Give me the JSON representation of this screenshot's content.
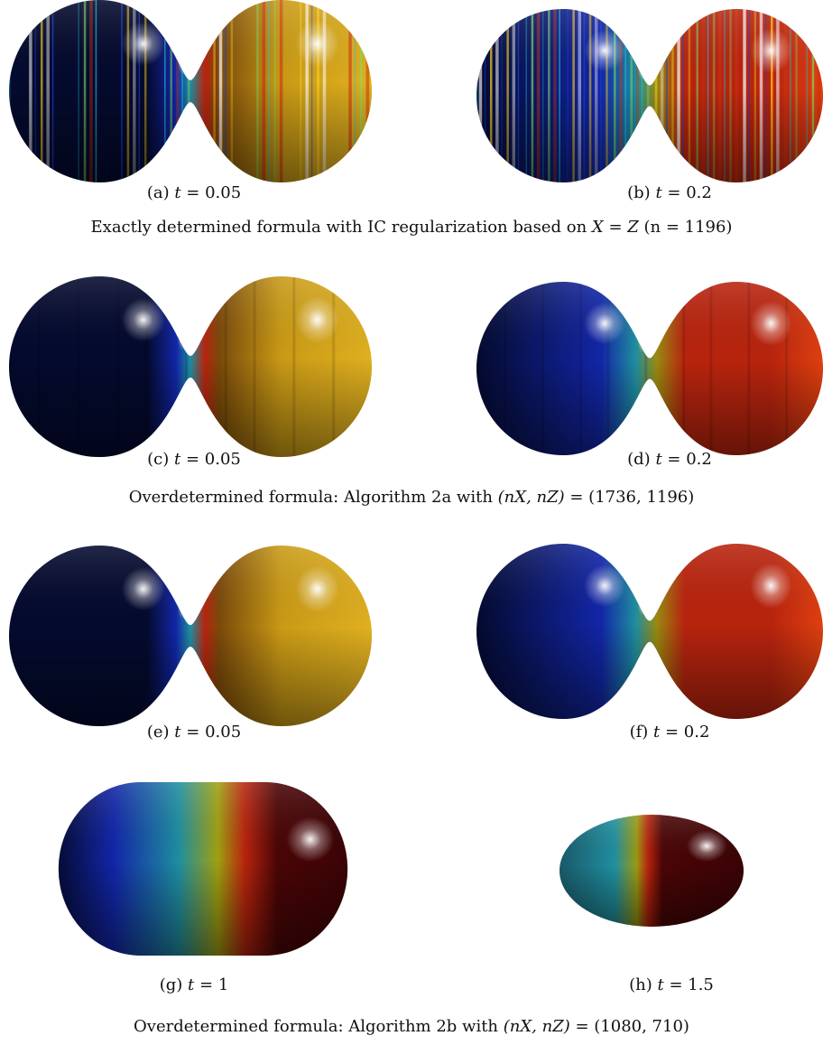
{
  "panels": [
    {
      "label": "(a)",
      "var": "t",
      "value": "0.05",
      "shape": "dumbbell",
      "style": "striped-gold"
    },
    {
      "label": "(b)",
      "var": "t",
      "value": "0.2",
      "shape": "dumbbell",
      "style": "striped-red"
    },
    {
      "label": "(c)",
      "var": "t",
      "value": "0.05",
      "shape": "dumbbell",
      "style": "smooth-gold"
    },
    {
      "label": "(d)",
      "var": "t",
      "value": "0.2",
      "shape": "dumbbell",
      "style": "smooth-red"
    },
    {
      "label": "(e)",
      "var": "t",
      "value": "0.05",
      "shape": "dumbbell",
      "style": "clean-gold"
    },
    {
      "label": "(f)",
      "var": "t",
      "value": "0.2",
      "shape": "dumbbell",
      "style": "clean-red"
    },
    {
      "label": "(g)",
      "var": "t",
      "value": "1",
      "shape": "capsule",
      "style": "capsule"
    },
    {
      "label": "(h)",
      "var": "t",
      "value": "1.5",
      "shape": "ellipse",
      "style": "ellipse"
    }
  ],
  "row_captions": [
    {
      "before": "Exactly determined formula with IC regularization based on ",
      "math": "X = Z",
      "after": " (n = 1196)"
    },
    {
      "before": "Overdetermined formula:  Algorithm 2a with ",
      "math": "(nX, nZ)",
      "after": " = (1736, 1196)"
    },
    {
      "before": "Overdetermined formula:  Algorithm 2b with ",
      "math": "(nX, nZ)",
      "after": " = (1080, 710)"
    }
  ],
  "colors": {
    "dark_navy": "#040a2e",
    "blue": "#1226a8",
    "cyan": "#1f8fa0",
    "gold": "#c99a16",
    "red": "#b8240e",
    "maroon": "#4a0506"
  }
}
